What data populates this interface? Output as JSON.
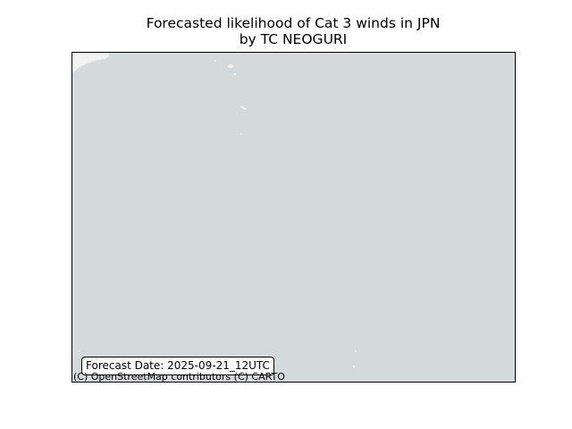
{
  "title": {
    "line1": "Forecasted likelihood of Cat 3 winds in JPN",
    "line2": "by TC NEOGURI"
  },
  "map": {
    "ocean_color": "#d4dadc",
    "land_color": "#f2f2f0",
    "frame_color": "#000000",
    "forecast_date_label": "Forecast Date: 2025-09-21_12UTC",
    "attribution": "(C) OpenStreetMap contributors (C) CARTO"
  }
}
